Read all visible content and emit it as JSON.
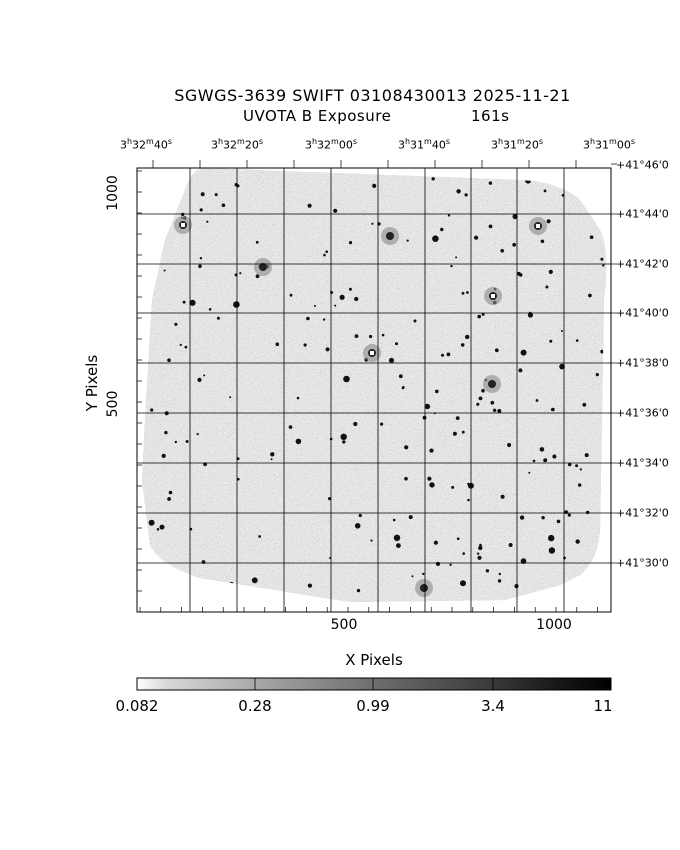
{
  "title": {
    "line1": "SGWGS-3639 SWIFT 03108430013 2025-11-21",
    "line2": "UVOTA B Exposure",
    "exposure": "161s"
  },
  "ra_labels": [
    {
      "h": "3",
      "m": "32",
      "s": "40"
    },
    {
      "h": "3",
      "m": "32",
      "s": "20"
    },
    {
      "h": "3",
      "m": "32",
      "s": "00"
    },
    {
      "h": "3",
      "m": "31",
      "s": "40"
    },
    {
      "h": "3",
      "m": "31",
      "s": "20"
    },
    {
      "h": "3",
      "m": "31",
      "s": "00"
    }
  ],
  "dec_labels": [
    "+41°46'0",
    "+41°44'0",
    "+41°42'0",
    "+41°40'0",
    "+41°38'0",
    "+41°36'0",
    "+41°34'0",
    "+41°32'0",
    "+41°30'0"
  ],
  "x_axis": {
    "label": "X Pixels",
    "ticks": [
      "500",
      "1000"
    ]
  },
  "y_axis": {
    "label": "Y Pixels",
    "ticks": [
      "1000",
      "500"
    ]
  },
  "colorbar": {
    "labels": [
      "0.082",
      "0.28",
      "0.99",
      "3.4",
      "11"
    ]
  }
}
